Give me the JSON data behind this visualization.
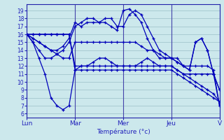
{
  "xlabel": "Température (°c)",
  "background_color": "#cce8ec",
  "line_color": "#0000bb",
  "marker": "+",
  "grid_color": "#9bbfc8",
  "yticks": [
    6,
    7,
    8,
    9,
    10,
    11,
    12,
    13,
    14,
    15,
    16,
    17,
    18,
    19
  ],
  "ylim": [
    5.5,
    19.8
  ],
  "xlim": [
    0,
    96
  ],
  "xtick_positions": [
    0,
    24,
    48,
    72,
    96
  ],
  "xtick_labels": [
    "Lun",
    "Mar",
    "Mer",
    "Jeu",
    "V"
  ],
  "series": [
    [
      0,
      16,
      3,
      15,
      6,
      13,
      9,
      11,
      12,
      8,
      15,
      7,
      18,
      6.5,
      21,
      7,
      24,
      11.5,
      27,
      12,
      30,
      12,
      33,
      12.5,
      36,
      13,
      39,
      13,
      42,
      12.5,
      45,
      12,
      48,
      12,
      51,
      12,
      54,
      12,
      57,
      12.5,
      60,
      13,
      63,
      12.5,
      66,
      12,
      69,
      12,
      72,
      12,
      75,
      11.5,
      78,
      11,
      81,
      11,
      84,
      11,
      87,
      11,
      90,
      11,
      93,
      11,
      96,
      7
    ],
    [
      0,
      16,
      3,
      15.5,
      6,
      15,
      9,
      14.5,
      12,
      14,
      15,
      13.5,
      18,
      13,
      21,
      13,
      24,
      15,
      27,
      15,
      30,
      15,
      33,
      15,
      36,
      15,
      39,
      15,
      42,
      15,
      45,
      15,
      48,
      15,
      51,
      15,
      54,
      15,
      57,
      14.5,
      60,
      14,
      63,
      14,
      66,
      13.5,
      69,
      13,
      72,
      13,
      75,
      12.5,
      78,
      12,
      81,
      12,
      84,
      12,
      87,
      12,
      90,
      12,
      93,
      11.5,
      96,
      7
    ],
    [
      0,
      16,
      3,
      15,
      6,
      14,
      9,
      13,
      12,
      13,
      15,
      13.5,
      18,
      14,
      21,
      15,
      24,
      17,
      27,
      17.5,
      30,
      18,
      33,
      18,
      36,
      17.5,
      39,
      17.5,
      42,
      17,
      45,
      16.5,
      48,
      19,
      51,
      19.2,
      54,
      18.5,
      57,
      17.5,
      60,
      15.5,
      63,
      14,
      66,
      13,
      69,
      13,
      72,
      13,
      75,
      12.5,
      78,
      12,
      81,
      11.5,
      84,
      15,
      87,
      15.5,
      90,
      14,
      93,
      11,
      96,
      9
    ],
    [
      0,
      16,
      3,
      15.5,
      6,
      15,
      9,
      14.5,
      12,
      14,
      15,
      14,
      18,
      14.5,
      21,
      15.5,
      24,
      17.5,
      27,
      17,
      30,
      17.5,
      33,
      17.5,
      36,
      17.5,
      39,
      18,
      42,
      18,
      45,
      17,
      48,
      17,
      51,
      18.5,
      54,
      19,
      57,
      18.5,
      60,
      17,
      63,
      15.5,
      66,
      14,
      69,
      13.5,
      72,
      13,
      75,
      13,
      78,
      12,
      81,
      11.5,
      84,
      15,
      87,
      15.5,
      90,
      14,
      93,
      11,
      96,
      9
    ],
    [
      0,
      16,
      3,
      16,
      6,
      16,
      9,
      16,
      12,
      16,
      15,
      16,
      18,
      16,
      21,
      16,
      24,
      11.5,
      27,
      11.5,
      30,
      11.5,
      33,
      11.5,
      36,
      11.5,
      39,
      11.5,
      42,
      11.5,
      45,
      11.5,
      48,
      11.5,
      51,
      11.5,
      54,
      11.5,
      57,
      11.5,
      60,
      11.5,
      63,
      11.5,
      66,
      11.5,
      69,
      11.5,
      72,
      11.5,
      75,
      11,
      78,
      10.5,
      81,
      10,
      84,
      9.5,
      87,
      9,
      90,
      8.5,
      93,
      8,
      96,
      7.5
    ],
    [
      0,
      16,
      3,
      16,
      6,
      16,
      9,
      16,
      12,
      16,
      15,
      16,
      18,
      16,
      21,
      16,
      24,
      12,
      27,
      12,
      30,
      12,
      33,
      12,
      36,
      12,
      39,
      12,
      42,
      12,
      45,
      12,
      48,
      12,
      51,
      12,
      54,
      12,
      57,
      12,
      60,
      12,
      63,
      12,
      66,
      12,
      69,
      12,
      72,
      12,
      75,
      11.5,
      78,
      11,
      81,
      10.5,
      84,
      10,
      87,
      9.5,
      90,
      9,
      93,
      8.5,
      96,
      7.5
    ]
  ]
}
